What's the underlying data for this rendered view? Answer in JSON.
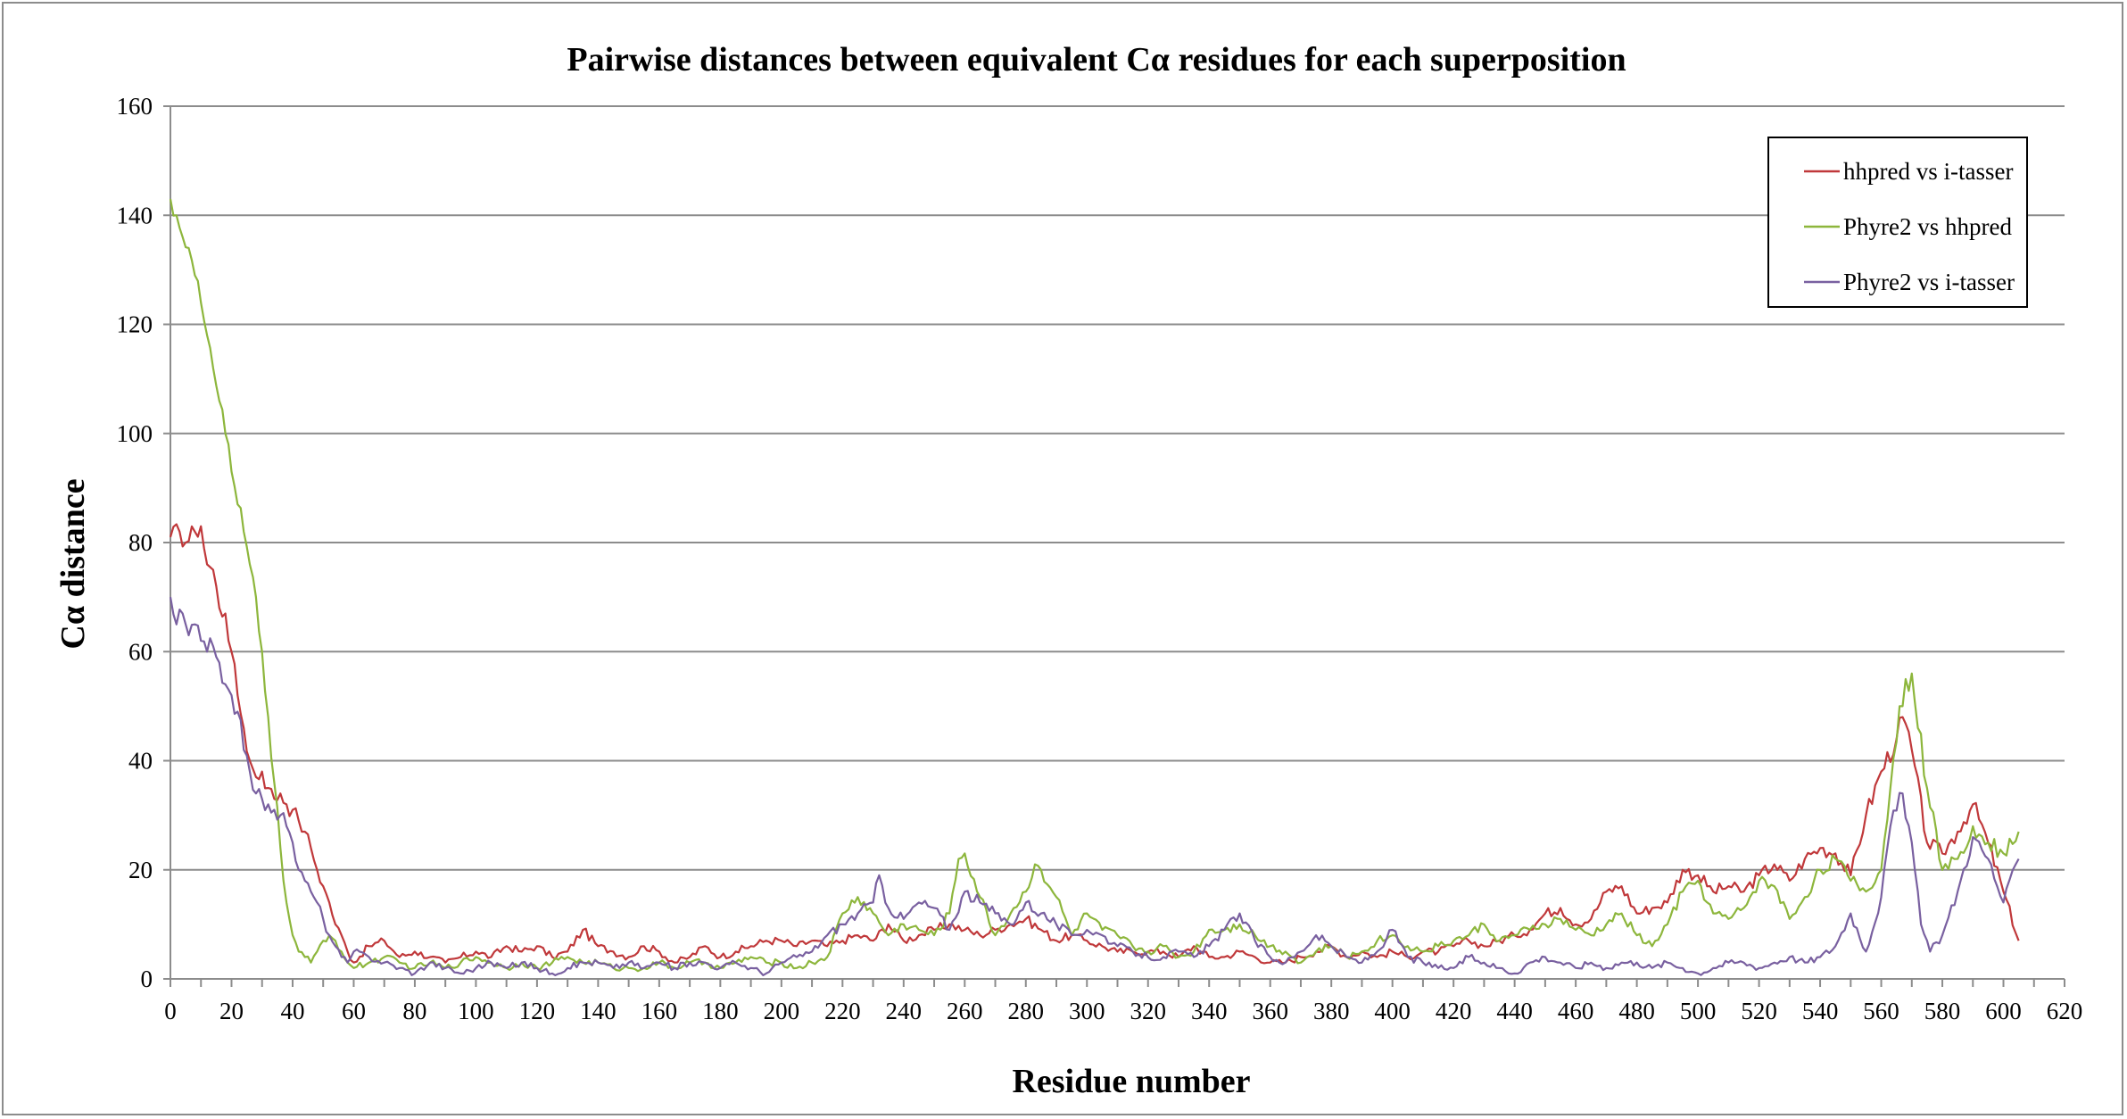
{
  "chart_data": {
    "type": "line",
    "title": "Pairwise distances between equivalent Cα residues for each superposition",
    "xlabel": "Residue number",
    "ylabel": "Cα distance",
    "xlim": [
      0,
      620
    ],
    "ylim": [
      0,
      160
    ],
    "xticks": [
      0,
      20,
      40,
      60,
      80,
      100,
      120,
      140,
      160,
      180,
      200,
      220,
      240,
      260,
      280,
      300,
      320,
      340,
      360,
      380,
      400,
      420,
      440,
      460,
      480,
      500,
      520,
      540,
      560,
      580,
      600,
      620
    ],
    "yticks": [
      0,
      20,
      40,
      60,
      80,
      100,
      120,
      140,
      160
    ],
    "grid": "horizontal",
    "legend_position": "top-right",
    "series": [
      {
        "name": "hhpred vs i-tasser",
        "color": "#c0383a",
        "x": [
          0,
          3,
          5,
          8,
          10,
          12,
          14,
          16,
          18,
          20,
          22,
          24,
          26,
          28,
          30,
          32,
          34,
          36,
          38,
          40,
          42,
          44,
          46,
          48,
          50,
          52,
          54,
          56,
          58,
          60,
          65,
          70,
          75,
          80,
          85,
          90,
          95,
          100,
          105,
          110,
          115,
          120,
          125,
          130,
          135,
          140,
          145,
          150,
          155,
          160,
          165,
          170,
          175,
          180,
          185,
          190,
          195,
          200,
          205,
          210,
          215,
          220,
          225,
          230,
          235,
          240,
          245,
          250,
          255,
          260,
          265,
          270,
          275,
          280,
          285,
          290,
          295,
          300,
          305,
          310,
          315,
          320,
          325,
          330,
          335,
          340,
          345,
          350,
          355,
          360,
          365,
          370,
          375,
          380,
          385,
          390,
          395,
          400,
          405,
          410,
          415,
          420,
          425,
          430,
          435,
          440,
          445,
          450,
          455,
          460,
          465,
          470,
          475,
          480,
          485,
          490,
          495,
          500,
          505,
          510,
          515,
          520,
          525,
          530,
          535,
          540,
          545,
          550,
          555,
          560,
          565,
          567,
          570,
          575,
          580,
          585,
          590,
          595,
          600,
          605
        ],
        "y": [
          81,
          82,
          80,
          82,
          83,
          76,
          75,
          68,
          67,
          60,
          52,
          46,
          40,
          37,
          38,
          35,
          33,
          34,
          32,
          31,
          29,
          27,
          24,
          20,
          17,
          14,
          10,
          8,
          5,
          3,
          6,
          7,
          4,
          5,
          4,
          3,
          4,
          5,
          4,
          6,
          5,
          6,
          4,
          5,
          9,
          6,
          5,
          4,
          6,
          5,
          3,
          4,
          6,
          4,
          5,
          6,
          7,
          7,
          6,
          7,
          6,
          7,
          8,
          7,
          10,
          7,
          8,
          9,
          10,
          9,
          8,
          9,
          10,
          11,
          9,
          7,
          8,
          7,
          6,
          5,
          5,
          5,
          5,
          4,
          6,
          4,
          4,
          5,
          4,
          3,
          3,
          4,
          5,
          6,
          4,
          5,
          4,
          5,
          4,
          5,
          5,
          6,
          7,
          6,
          7,
          8,
          9,
          12,
          13,
          10,
          11,
          16,
          17,
          12,
          13,
          14,
          20,
          19,
          16,
          17,
          16,
          19,
          21,
          18,
          22,
          24,
          23,
          19,
          30,
          38,
          44,
          48,
          42,
          25,
          23,
          27,
          32,
          25,
          16,
          7
        ]
      },
      {
        "name": "Phyre2 vs hhpred",
        "color": "#8db63c",
        "x": [
          0,
          2,
          4,
          6,
          8,
          10,
          12,
          14,
          16,
          18,
          20,
          22,
          24,
          26,
          28,
          30,
          32,
          34,
          36,
          38,
          40,
          42,
          44,
          46,
          48,
          50,
          52,
          54,
          56,
          58,
          60,
          65,
          70,
          75,
          80,
          85,
          90,
          95,
          100,
          105,
          110,
          115,
          120,
          125,
          130,
          135,
          140,
          145,
          150,
          155,
          160,
          165,
          170,
          175,
          180,
          185,
          190,
          195,
          200,
          205,
          210,
          215,
          220,
          225,
          230,
          235,
          240,
          245,
          250,
          255,
          258,
          260,
          265,
          270,
          275,
          280,
          283,
          285,
          290,
          295,
          300,
          305,
          310,
          315,
          320,
          325,
          330,
          335,
          340,
          345,
          350,
          355,
          360,
          365,
          370,
          375,
          380,
          385,
          390,
          395,
          400,
          405,
          410,
          415,
          420,
          425,
          430,
          435,
          440,
          445,
          450,
          455,
          460,
          465,
          470,
          475,
          480,
          485,
          490,
          495,
          500,
          505,
          510,
          515,
          520,
          525,
          530,
          535,
          540,
          545,
          550,
          555,
          560,
          563,
          566,
          570,
          575,
          580,
          585,
          590,
          595,
          600,
          605
        ],
        "y": [
          143,
          140,
          136,
          134,
          129,
          124,
          118,
          112,
          106,
          100,
          93,
          87,
          82,
          76,
          70,
          60,
          48,
          36,
          24,
          14,
          8,
          5,
          4,
          3,
          5,
          7,
          8,
          7,
          5,
          3,
          2,
          3,
          4,
          3,
          2,
          3,
          2,
          3,
          4,
          3,
          2,
          3,
          2,
          3,
          4,
          3,
          3,
          2,
          2,
          2,
          3,
          2,
          3,
          3,
          2,
          3,
          4,
          3,
          3,
          2,
          3,
          4,
          12,
          15,
          12,
          8,
          10,
          9,
          8,
          12,
          22,
          23,
          15,
          8,
          12,
          16,
          21,
          20,
          15,
          8,
          12,
          9,
          8,
          6,
          5,
          6,
          4,
          5,
          9,
          9,
          10,
          8,
          6,
          5,
          3,
          5,
          6,
          4,
          5,
          7,
          8,
          6,
          5,
          6,
          7,
          8,
          10,
          7,
          8,
          9,
          10,
          11,
          9,
          8,
          10,
          12,
          8,
          6,
          10,
          16,
          18,
          12,
          11,
          13,
          18,
          17,
          11,
          15,
          20,
          22,
          18,
          16,
          20,
          35,
          50,
          56,
          35,
          20,
          22,
          28,
          25,
          23,
          27
        ]
      },
      {
        "name": "Phyre2 vs i-tasser",
        "color": "#7960a0",
        "x": [
          0,
          2,
          4,
          6,
          8,
          10,
          12,
          14,
          16,
          18,
          20,
          22,
          24,
          26,
          28,
          30,
          32,
          34,
          36,
          38,
          40,
          42,
          44,
          46,
          48,
          50,
          52,
          54,
          56,
          58,
          60,
          65,
          70,
          75,
          80,
          85,
          90,
          95,
          100,
          105,
          110,
          115,
          120,
          125,
          130,
          135,
          140,
          145,
          150,
          155,
          160,
          165,
          170,
          175,
          180,
          185,
          190,
          195,
          200,
          205,
          210,
          215,
          220,
          225,
          230,
          232,
          235,
          240,
          245,
          250,
          255,
          260,
          265,
          270,
          275,
          280,
          285,
          290,
          295,
          300,
          305,
          310,
          315,
          320,
          325,
          330,
          335,
          340,
          345,
          350,
          355,
          360,
          365,
          370,
          375,
          380,
          385,
          390,
          395,
          400,
          405,
          410,
          415,
          420,
          425,
          430,
          435,
          440,
          445,
          450,
          455,
          460,
          465,
          470,
          475,
          480,
          485,
          490,
          495,
          500,
          505,
          510,
          515,
          520,
          525,
          530,
          535,
          540,
          545,
          550,
          555,
          560,
          563,
          567,
          570,
          573,
          576,
          580,
          585,
          590,
          595,
          600,
          605
        ],
        "y": [
          70,
          65,
          67,
          63,
          65,
          62,
          60,
          61,
          58,
          54,
          52,
          49,
          42,
          38,
          34,
          33,
          32,
          31,
          30,
          28,
          25,
          20,
          18,
          16,
          14,
          11,
          8,
          6,
          4,
          3,
          5,
          4,
          3,
          2,
          1,
          3,
          2,
          1,
          2,
          3,
          2,
          3,
          2,
          1,
          2,
          3,
          3,
          2,
          3,
          2,
          3,
          2,
          3,
          3,
          2,
          3,
          2,
          1,
          3,
          4,
          5,
          8,
          10,
          12,
          14,
          19,
          13,
          11,
          14,
          13,
          9,
          16,
          14,
          12,
          10,
          14,
          12,
          10,
          8,
          9,
          8,
          6,
          5,
          4,
          4,
          5,
          4,
          6,
          9,
          12,
          7,
          4,
          3,
          5,
          8,
          6,
          4,
          3,
          5,
          9,
          4,
          3,
          2,
          2,
          4,
          3,
          2,
          1,
          3,
          4,
          3,
          2,
          3,
          2,
          3,
          3,
          2,
          3,
          2,
          1,
          2,
          3,
          3,
          2,
          3,
          4,
          3,
          4,
          6,
          12,
          5,
          15,
          28,
          34,
          25,
          10,
          5,
          8,
          16,
          26,
          22,
          14,
          22
        ]
      }
    ]
  }
}
